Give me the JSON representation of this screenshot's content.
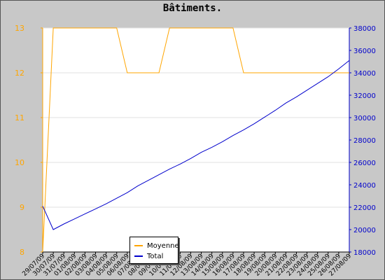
{
  "chart_data": {
    "type": "line",
    "title": "Bâtiments.",
    "x": [
      "29/07/09",
      "30/07/09",
      "31/07/09",
      "01/08/09",
      "02/08/09",
      "03/08/09",
      "04/08/09",
      "05/08/09",
      "06/08/09",
      "07/08/09",
      "08/08/09",
      "09/08/09",
      "10/08/09",
      "11/08/09",
      "12/08/09",
      "13/08/09",
      "14/08/09",
      "15/08/09",
      "16/08/09",
      "17/08/09",
      "18/08/09",
      "19/08/09",
      "20/08/09",
      "21/08/09",
      "22/08/09",
      "23/08/09",
      "24/08/09",
      "25/08/09",
      "26/08/09",
      "27/08/09"
    ],
    "series": [
      {
        "name": "Moyenne",
        "axis": "left",
        "color": "#ffa500",
        "values": [
          8,
          13,
          13,
          13,
          13,
          13,
          13,
          13,
          12,
          12,
          12,
          12,
          13,
          13,
          13,
          13,
          13,
          13,
          13,
          12,
          12,
          12,
          12,
          12,
          12,
          12,
          12,
          12,
          12,
          12
        ]
      },
      {
        "name": "Total",
        "axis": "right",
        "color": "#0000cc",
        "values": [
          22100,
          20000,
          20500,
          20950,
          21400,
          21850,
          22300,
          22800,
          23300,
          23900,
          24400,
          24900,
          25400,
          25850,
          26350,
          26900,
          27350,
          27850,
          28400,
          28900,
          29450,
          30050,
          30650,
          31300,
          31850,
          32450,
          33050,
          33650,
          34350,
          35100
        ]
      }
    ],
    "y_left": {
      "ylim": [
        8,
        13
      ],
      "ticks": [
        8,
        9,
        10,
        11,
        12,
        13
      ],
      "color": "#ffa500"
    },
    "y_right": {
      "ylim": [
        18000,
        38000
      ],
      "ticks": [
        18000,
        20000,
        22000,
        24000,
        26000,
        28000,
        30000,
        32000,
        34000,
        36000,
        38000
      ],
      "color": "#0000cc"
    },
    "grid": true,
    "legend": "bottom-left"
  }
}
